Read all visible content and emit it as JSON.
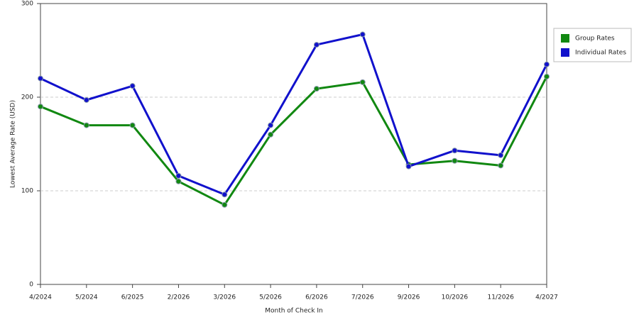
{
  "chart_data": {
    "type": "line",
    "x_label": "Month of Check In",
    "y_label": "Lowest Average Rate (USD)",
    "categories": [
      "4/2024",
      "5/2024",
      "6/2025",
      "2/2026",
      "3/2026",
      "5/2026",
      "6/2026",
      "7/2026",
      "9/2026",
      "10/2026",
      "11/2026",
      "4/2027"
    ],
    "series": [
      {
        "name": "Group Rates",
        "color": "#118811",
        "values": [
          190,
          170,
          170,
          110,
          85,
          160,
          209,
          216,
          128,
          132,
          127,
          222
        ]
      },
      {
        "name": "Individual Rates",
        "color": "#1111cc",
        "values": [
          220,
          197,
          212,
          116,
          96,
          170,
          256,
          267,
          126,
          143,
          138,
          235
        ]
      }
    ],
    "ylim": [
      0,
      300
    ],
    "yticks": [
      0,
      100,
      200,
      300
    ],
    "grid": true,
    "legend": "right"
  }
}
